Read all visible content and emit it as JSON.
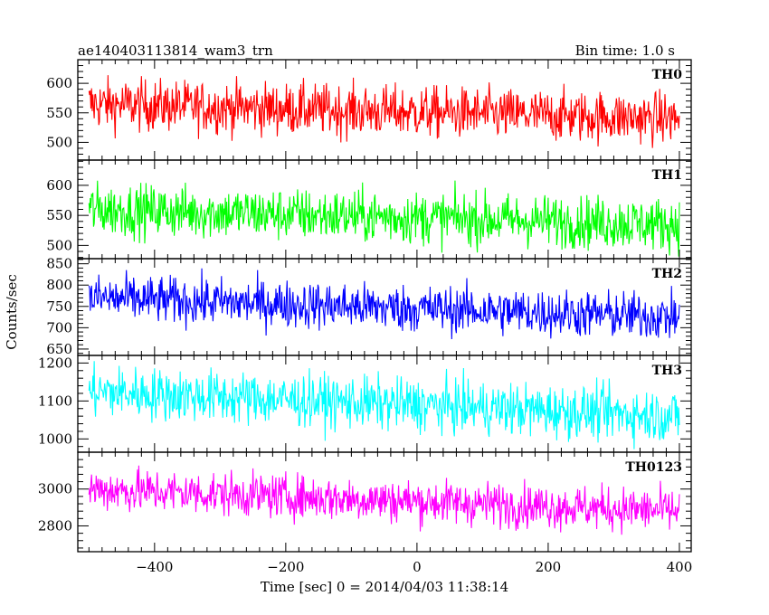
{
  "header": {
    "title": "ae140403113814_wam3_trn",
    "bin_time": "Bin time: 1.0 s"
  },
  "chart_data": {
    "type": "line",
    "x_start": -500,
    "x_end": 400,
    "xlim": [
      -517,
      418
    ],
    "x_ticks": [
      -400,
      -200,
      0,
      200,
      400
    ],
    "xlabel": "Time [sec] 0 = 2014/04/03 11:38:14",
    "ylabel": "Counts/sec",
    "panels": [
      {
        "name": "TH0",
        "color": "#ff0000",
        "ylim": [
          470,
          640
        ],
        "yticks": [
          500,
          550,
          600
        ],
        "mean_start": 565,
        "mean_end": 540,
        "noise": 22
      },
      {
        "name": "TH1",
        "color": "#00ff00",
        "ylim": [
          478,
          642
        ],
        "yticks": [
          500,
          550,
          600
        ],
        "mean_start": 560,
        "mean_end": 535,
        "noise": 22
      },
      {
        "name": "TH2",
        "color": "#0000ff",
        "ylim": [
          635,
          862
        ],
        "yticks": [
          650,
          700,
          750,
          800,
          850
        ],
        "mean_start": 770,
        "mean_end": 725,
        "noise": 28
      },
      {
        "name": "TH3",
        "color": "#00ffff",
        "ylim": [
          965,
          1220
        ],
        "yticks": [
          1000,
          1100,
          1200
        ],
        "mean_start": 1125,
        "mean_end": 1060,
        "noise": 35
      },
      {
        "name": "TH0123",
        "color": "#ff00ff",
        "ylim": [
          2660,
          3200
        ],
        "yticks": [
          2800,
          3000
        ],
        "mean_start": 3000,
        "mean_end": 2880,
        "noise": 60
      }
    ]
  }
}
